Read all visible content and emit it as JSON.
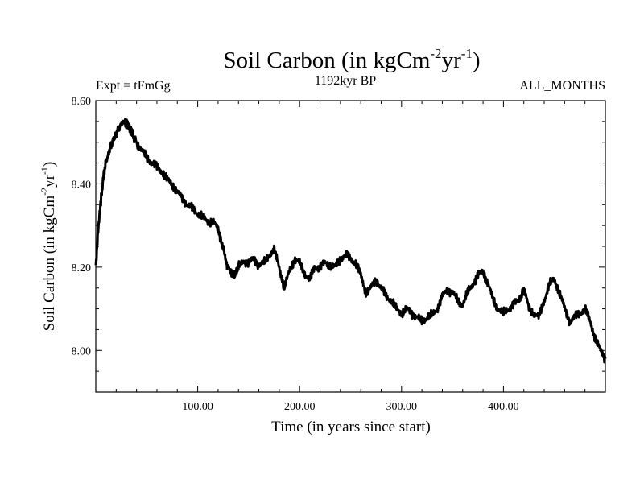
{
  "chart_data": {
    "type": "line",
    "title": {
      "main": "Soil Carbon (in kgCm",
      "sup1": "-2",
      "mid": "yr",
      "sup2": "-1",
      "end": ")"
    },
    "subtitle_left": "Expt = tFmGg",
    "subtitle_center": "1192kyr BP",
    "subtitle_right": "ALL_MONTHS",
    "xlabel": "Time (in years since start)",
    "ylabel": {
      "main": "Soil Carbon (in kgCm",
      "sup1": "-2",
      "mid": "yr",
      "sup2": "-1",
      "end": ")"
    },
    "xlim": [
      0,
      500
    ],
    "ylim": [
      7.9,
      8.6
    ],
    "x_ticks": [
      100,
      200,
      300,
      400
    ],
    "x_tick_labels": [
      "100.00",
      "200.00",
      "300.00",
      "400.00"
    ],
    "y_ticks": [
      8.0,
      8.2,
      8.4,
      8.6
    ],
    "y_tick_labels": [
      "8.00",
      "8.20",
      "8.40",
      "8.60"
    ],
    "series": [
      {
        "name": "Soil Carbon",
        "color": "#000000",
        "x": [
          0,
          2,
          5,
          8,
          12,
          16,
          20,
          24,
          27,
          30,
          33,
          36,
          40,
          45,
          50,
          55,
          60,
          65,
          70,
          75,
          80,
          85,
          90,
          95,
          100,
          105,
          110,
          115,
          120,
          125,
          128,
          132,
          136,
          140,
          145,
          150,
          155,
          160,
          165,
          170,
          175,
          180,
          185,
          190,
          195,
          200,
          205,
          210,
          215,
          220,
          225,
          230,
          235,
          240,
          245,
          250,
          255,
          260,
          265,
          270,
          275,
          280,
          285,
          290,
          295,
          300,
          305,
          310,
          315,
          320,
          325,
          330,
          335,
          340,
          345,
          350,
          355,
          360,
          365,
          370,
          375,
          380,
          385,
          390,
          395,
          400,
          405,
          410,
          415,
          420,
          425,
          430,
          435,
          440,
          445,
          450,
          455,
          460,
          465,
          470,
          475,
          480,
          485,
          490,
          495,
          500
        ],
        "y": [
          8.2,
          8.28,
          8.36,
          8.43,
          8.47,
          8.5,
          8.52,
          8.54,
          8.55,
          8.545,
          8.535,
          8.52,
          8.5,
          8.48,
          8.465,
          8.45,
          8.44,
          8.43,
          8.41,
          8.4,
          8.38,
          8.365,
          8.35,
          8.34,
          8.33,
          8.32,
          8.31,
          8.31,
          8.29,
          8.25,
          8.21,
          8.19,
          8.18,
          8.2,
          8.215,
          8.21,
          8.22,
          8.205,
          8.21,
          8.23,
          8.24,
          8.2,
          8.15,
          8.19,
          8.22,
          8.21,
          8.185,
          8.17,
          8.2,
          8.2,
          8.21,
          8.205,
          8.2,
          8.22,
          8.23,
          8.22,
          8.21,
          8.18,
          8.14,
          8.15,
          8.17,
          8.15,
          8.13,
          8.12,
          8.1,
          8.09,
          8.1,
          8.09,
          8.08,
          8.07,
          8.08,
          8.085,
          8.1,
          8.13,
          8.145,
          8.14,
          8.12,
          8.11,
          8.14,
          8.16,
          8.18,
          8.19,
          8.16,
          8.12,
          8.1,
          8.09,
          8.1,
          8.11,
          8.12,
          8.15,
          8.1,
          8.09,
          8.08,
          8.12,
          8.16,
          8.17,
          8.14,
          8.1,
          8.07,
          8.08,
          8.09,
          8.1,
          8.07,
          8.03,
          8.0,
          7.98
        ]
      }
    ]
  }
}
